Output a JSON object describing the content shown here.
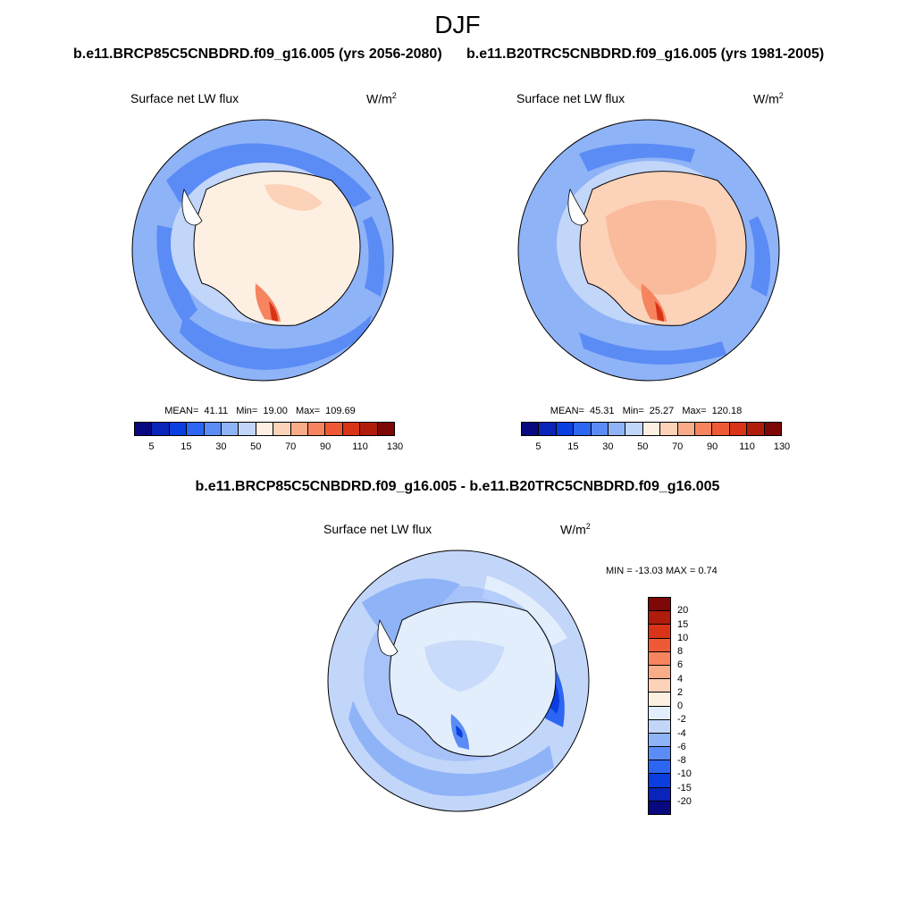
{
  "figure": {
    "title": "DJF",
    "case_a": "b.e11.BRCP85C5CNBDRD.f09_g16.005 (yrs 2056-2080)",
    "case_b": "b.e11.B20TRC5CNBDRD.f09_g16.005 (yrs 1981-2005)",
    "diff_title": "b.e11.BRCP85C5CNBDRD.f09_g16.005 - b.e11.B20TRC5CNBDRD.f09_g16.005"
  },
  "panels": {
    "a": {
      "variable": "Surface net LW flux",
      "units_base": "W/m",
      "units_exp": "2",
      "mean_label": "MEAN=",
      "mean": "41.11",
      "min_label": "Min=",
      "min": "19.00",
      "max_label": "Max=",
      "max": "109.69"
    },
    "b": {
      "variable": "Surface net LW flux",
      "units_base": "W/m",
      "units_exp": "2",
      "mean_label": "MEAN=",
      "mean": "45.31",
      "min_label": "Min=",
      "min": "25.27",
      "max_label": "Max=",
      "max": "120.18"
    },
    "diff": {
      "variable": "Surface net LW flux",
      "units_base": "W/m",
      "units_exp": "2",
      "minmax": "MIN = -13.03 MAX =   0.74"
    }
  },
  "colorbar_abs": {
    "tick_labels": [
      "5",
      "15",
      "30",
      "50",
      "70",
      "90",
      "110",
      "130"
    ],
    "colors": [
      "#08097e",
      "#0a23b8",
      "#0b3ee0",
      "#2d66f2",
      "#5b8cf5",
      "#8fb3f7",
      "#c2d6fa",
      "#fdf0e3",
      "#fcd2b8",
      "#f9ac88",
      "#f6845f",
      "#ee5a35",
      "#d93418",
      "#b01c0b",
      "#7e0707"
    ]
  },
  "colorbar_diff": {
    "tick_labels": [
      "20",
      "15",
      "10",
      "8",
      "6",
      "4",
      "2",
      "0",
      "-2",
      "-4",
      "-6",
      "-8",
      "-10",
      "-15",
      "-20"
    ],
    "colors": [
      "#7e0707",
      "#b01c0b",
      "#d93418",
      "#ee5a35",
      "#f6845f",
      "#f9ac88",
      "#fcd2b8",
      "#fdf0e3",
      "#e3eefc",
      "#c2d6fa",
      "#8fb3f7",
      "#5b8cf5",
      "#2d66f2",
      "#0b3ee0",
      "#0a23b8",
      "#08097e"
    ]
  }
}
